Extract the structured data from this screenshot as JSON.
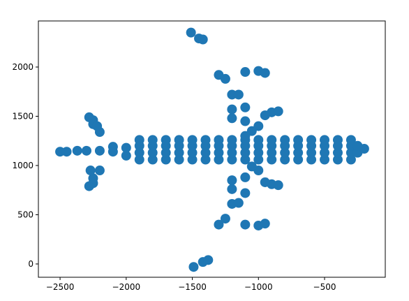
{
  "chart_data": {
    "type": "scatter",
    "x": [
      -1900,
      -1800,
      -1700,
      -1600,
      -1500,
      -1400,
      -1300,
      -1200,
      -1100,
      -1000,
      -900,
      -800,
      -700,
      -600,
      -500,
      -400,
      -300,
      -1900,
      -1800,
      -1700,
      -1600,
      -1500,
      -1400,
      -1300,
      -1200,
      -1100,
      -1000,
      -900,
      -800,
      -700,
      -600,
      -500,
      -400,
      -300,
      -1900,
      -1800,
      -1700,
      -1600,
      -1500,
      -1400,
      -1300,
      -1200,
      -1100,
      -1000,
      -900,
      -800,
      -700,
      -600,
      -500,
      -400,
      -300,
      -1900,
      -1800,
      -1700,
      -1600,
      -1500,
      -1400,
      -1300,
      -1200,
      -1100,
      -1000,
      -900,
      -800,
      -700,
      -600,
      -500,
      -400,
      -300,
      -250,
      -250,
      -200,
      -2000,
      -2000,
      -2100,
      -2100,
      -2200,
      -2300,
      -2370,
      -2500,
      -2450,
      -2280,
      -2250,
      -2250,
      -2200,
      -2220,
      -2280,
      -2250,
      -2250,
      -2200,
      -2270,
      -1100,
      -1000,
      -950,
      -1300,
      -1250,
      -1510,
      -1450,
      -1420,
      -1200,
      -1150,
      -1100,
      -1200,
      -900,
      -850,
      -950,
      -1100,
      -1000,
      -1050,
      -1200,
      -1100,
      -1100,
      -1000,
      -950,
      -1300,
      -1250,
      -1490,
      -1420,
      -1380,
      -1200,
      -1150,
      -1100,
      -1200,
      -900,
      -850,
      -950,
      -1100,
      -1000,
      -1050,
      -1200
    ],
    "series": [
      {
        "color": "#1f77b4",
        "values": [
          1060,
          1060,
          1060,
          1060,
          1060,
          1060,
          1060,
          1060,
          1060,
          1060,
          1060,
          1060,
          1060,
          1060,
          1060,
          1060,
          1060,
          1130,
          1130,
          1130,
          1130,
          1130,
          1130,
          1130,
          1130,
          1130,
          1130,
          1130,
          1130,
          1130,
          1130,
          1130,
          1130,
          1130,
          1200,
          1200,
          1200,
          1200,
          1200,
          1200,
          1200,
          1200,
          1200,
          1200,
          1200,
          1200,
          1200,
          1200,
          1200,
          1200,
          1200,
          1260,
          1260,
          1260,
          1260,
          1260,
          1260,
          1260,
          1260,
          1260,
          1260,
          1260,
          1260,
          1260,
          1260,
          1260,
          1260,
          1260,
          1130,
          1200,
          1170,
          1100,
          1180,
          1140,
          1190,
          1150,
          1150,
          1150,
          1140,
          1140,
          1490,
          1460,
          1420,
          1340,
          1400,
          790,
          820,
          870,
          950,
          950,
          1950,
          1960,
          1940,
          1920,
          1880,
          2350,
          2290,
          2280,
          1720,
          1720,
          1590,
          1570,
          1540,
          1550,
          1510,
          1450,
          1400,
          1350,
          1480,
          1300,
          400,
          390,
          410,
          400,
          460,
          -30,
          20,
          40,
          610,
          620,
          720,
          760,
          810,
          800,
          830,
          880,
          950,
          990,
          850
        ]
      }
    ],
    "xlim": [
      -2664,
      -41
    ],
    "ylim": [
      -135,
      2468
    ],
    "xticks": [
      {
        "value": -2500,
        "label": "−2500"
      },
      {
        "value": -2000,
        "label": "−2000"
      },
      {
        "value": -1500,
        "label": "−1500"
      },
      {
        "value": -1000,
        "label": "−1000"
      },
      {
        "value": -500,
        "label": "−500"
      }
    ],
    "yticks": [
      0,
      500,
      1000,
      1500,
      2000
    ]
  }
}
